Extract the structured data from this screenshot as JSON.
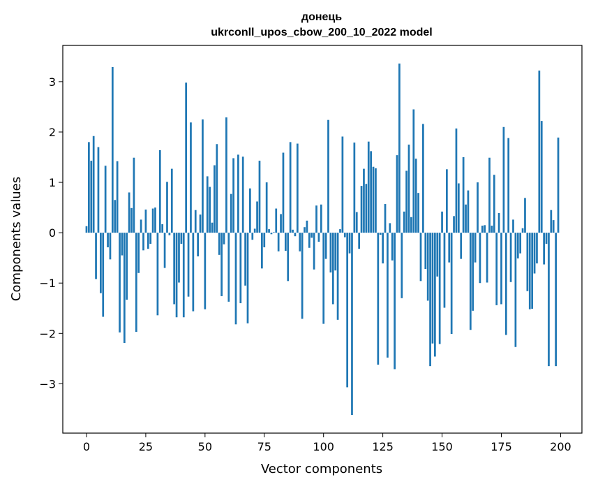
{
  "chart_data": {
    "type": "bar",
    "title": "донець",
    "subtitle": "ukrconll_upos_cbow_200_10_2022 model",
    "xlabel": "Vector components",
    "ylabel": "Components values",
    "xlim": [
      -10,
      209
    ],
    "ylim": [
      -3.98,
      3.72
    ],
    "xticks": [
      0,
      25,
      50,
      75,
      100,
      125,
      150,
      175,
      200
    ],
    "xtick_labels": [
      "0",
      "25",
      "50",
      "75",
      "100",
      "125",
      "150",
      "175",
      "200"
    ],
    "yticks": [
      -3,
      -2,
      -1,
      0,
      1,
      2,
      3
    ],
    "ytick_labels": [
      "−3",
      "−2",
      "−1",
      "0",
      "1",
      "2",
      "3"
    ],
    "grid": false,
    "bar_color": "#1f77b4",
    "x": [
      0,
      1,
      2,
      3,
      4,
      5,
      6,
      7,
      8,
      9,
      10,
      11,
      12,
      13,
      14,
      15,
      16,
      17,
      18,
      19,
      20,
      21,
      22,
      23,
      24,
      25,
      26,
      27,
      28,
      29,
      30,
      31,
      32,
      33,
      34,
      35,
      36,
      37,
      38,
      39,
      40,
      41,
      42,
      43,
      44,
      45,
      46,
      47,
      48,
      49,
      50,
      51,
      52,
      53,
      54,
      55,
      56,
      57,
      58,
      59,
      60,
      61,
      62,
      63,
      64,
      65,
      66,
      67,
      68,
      69,
      70,
      71,
      72,
      73,
      74,
      75,
      76,
      77,
      78,
      79,
      80,
      81,
      82,
      83,
      84,
      85,
      86,
      87,
      88,
      89,
      90,
      91,
      92,
      93,
      94,
      95,
      96,
      97,
      98,
      99,
      100,
      101,
      102,
      103,
      104,
      105,
      106,
      107,
      108,
      109,
      110,
      111,
      112,
      113,
      114,
      115,
      116,
      117,
      118,
      119,
      120,
      121,
      122,
      123,
      124,
      125,
      126,
      127,
      128,
      129,
      130,
      131,
      132,
      133,
      134,
      135,
      136,
      137,
      138,
      139,
      140,
      141,
      142,
      143,
      144,
      145,
      146,
      147,
      148,
      149,
      150,
      151,
      152,
      153,
      154,
      155,
      156,
      157,
      158,
      159,
      160,
      161,
      162,
      163,
      164,
      165,
      166,
      167,
      168,
      169,
      170,
      171,
      172,
      173,
      174,
      175,
      176,
      177,
      178,
      179,
      180,
      181,
      182,
      183,
      184,
      185,
      186,
      187,
      188,
      189,
      190,
      191,
      192,
      193,
      194,
      195,
      196,
      197,
      198,
      199
    ],
    "values": [
      0.13,
      1.8,
      1.43,
      1.92,
      -0.92,
      1.7,
      -1.2,
      -1.67,
      1.33,
      -0.29,
      -0.53,
      3.29,
      0.65,
      1.42,
      -1.98,
      -0.45,
      -2.19,
      -1.33,
      0.8,
      0.49,
      1.49,
      -1.97,
      -0.8,
      0.26,
      -0.35,
      0.46,
      -0.32,
      -0.22,
      0.48,
      0.5,
      -1.64,
      1.64,
      0.17,
      -0.7,
      1.01,
      -0.05,
      1.27,
      -1.42,
      -1.68,
      -0.99,
      -0.22,
      -1.68,
      2.98,
      -1.27,
      2.19,
      -1.56,
      0.45,
      -0.47,
      0.36,
      2.25,
      -1.52,
      1.12,
      0.91,
      0.2,
      1.34,
      1.76,
      -0.44,
      -1.26,
      -0.23,
      2.29,
      -1.37,
      0.77,
      1.48,
      -1.82,
      1.55,
      -1.4,
      1.51,
      -1.05,
      -1.8,
      0.88,
      -0.14,
      0.08,
      0.62,
      1.43,
      -0.71,
      -0.29,
      1.0,
      0.07,
      -0.03,
      0.01,
      0.48,
      -0.37,
      0.37,
      1.59,
      -0.36,
      -0.96,
      1.8,
      0.06,
      -0.07,
      1.77,
      -0.37,
      -1.71,
      0.11,
      0.24,
      -0.3,
      -0.1,
      -0.73,
      0.54,
      -0.18,
      0.56,
      -1.81,
      -0.52,
      2.24,
      -0.79,
      -1.42,
      -0.75,
      -1.73,
      0.07,
      1.91,
      -0.09,
      -3.07,
      -0.41,
      -3.62,
      1.79,
      0.41,
      -0.32,
      0.93,
      1.27,
      0.97,
      1.81,
      1.62,
      1.31,
      1.28,
      -2.62,
      -0.04,
      -0.61,
      0.57,
      -2.48,
      0.19,
      -0.55,
      -2.71,
      1.54,
      3.36,
      -1.3,
      0.42,
      1.23,
      1.75,
      0.31,
      2.45,
      1.47,
      0.79,
      -0.96,
      2.16,
      -0.72,
      -1.35,
      -2.65,
      -2.2,
      -2.46,
      -0.87,
      -2.21,
      0.42,
      -1.49,
      1.26,
      -0.59,
      -2.01,
      0.33,
      2.07,
      0.98,
      -0.52,
      1.5,
      0.56,
      0.84,
      -1.93,
      -1.55,
      -0.59,
      1.0,
      -1.0,
      0.14,
      0.15,
      -0.99,
      1.49,
      0.14,
      1.15,
      -1.44,
      0.39,
      -1.42,
      2.1,
      -2.03,
      1.88,
      -0.98,
      0.26,
      -2.27,
      -0.51,
      -0.41,
      0.09,
      0.69,
      -1.16,
      -1.52,
      -1.51,
      -0.81,
      -0.61,
      3.22,
      2.22,
      -0.63,
      -0.22,
      -2.65,
      0.45,
      0.25,
      -2.65,
      1.89
    ]
  }
}
